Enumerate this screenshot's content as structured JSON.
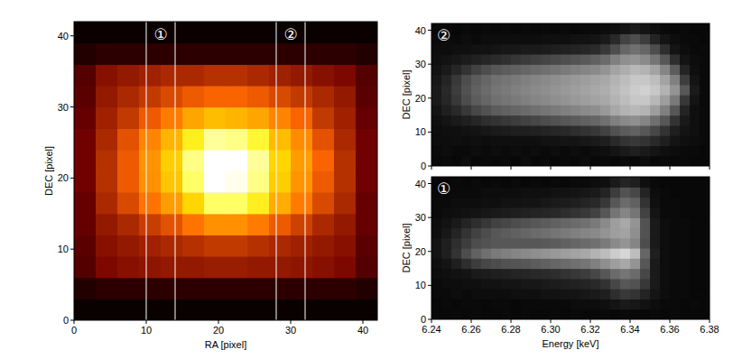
{
  "chart_data": [
    {
      "type": "heatmap",
      "color": "hot",
      "xlabel": "RA [pixel]",
      "ylabel": "DEC [pixel]",
      "xlim": [
        0,
        42
      ],
      "ylim": [
        0,
        42
      ],
      "xticks": [
        0,
        10,
        20,
        30,
        40
      ],
      "yticks": [
        0,
        10,
        20,
        30,
        40
      ],
      "zlim": [
        0,
        100
      ],
      "annotations": [
        {
          "label": "①",
          "x": [
            10,
            14
          ]
        },
        {
          "label": "②",
          "x": [
            28,
            32
          ]
        }
      ],
      "cells": [
        [
          2,
          2,
          2,
          2,
          2,
          2,
          2,
          2,
          2,
          2,
          2,
          2,
          2,
          2
        ],
        [
          6,
          8,
          8,
          8,
          8,
          8,
          8,
          8,
          8,
          8,
          8,
          8,
          8,
          6
        ],
        [
          15,
          22,
          24,
          25,
          26,
          26,
          27,
          27,
          26,
          26,
          25,
          24,
          22,
          15
        ],
        [
          16,
          24,
          26,
          28,
          30,
          32,
          34,
          34,
          32,
          30,
          28,
          26,
          24,
          16
        ],
        [
          18,
          26,
          30,
          35,
          40,
          48,
          55,
          55,
          50,
          42,
          36,
          30,
          26,
          18
        ],
        [
          18,
          30,
          38,
          48,
          58,
          72,
          85,
          85,
          78,
          62,
          50,
          38,
          30,
          18
        ],
        [
          20,
          32,
          42,
          55,
          68,
          85,
          100,
          98,
          88,
          70,
          56,
          42,
          32,
          20
        ],
        [
          20,
          32,
          42,
          56,
          70,
          88,
          100,
          100,
          90,
          72,
          58,
          44,
          32,
          20
        ],
        [
          20,
          30,
          40,
          52,
          64,
          78,
          90,
          88,
          80,
          66,
          54,
          40,
          30,
          20
        ],
        [
          18,
          28,
          34,
          42,
          50,
          60,
          66,
          64,
          60,
          52,
          44,
          34,
          28,
          18
        ],
        [
          16,
          26,
          30,
          34,
          38,
          42,
          44,
          44,
          42,
          38,
          34,
          30,
          26,
          16
        ],
        [
          15,
          24,
          26,
          28,
          30,
          30,
          32,
          32,
          30,
          28,
          26,
          24,
          22,
          15
        ],
        [
          6,
          8,
          8,
          8,
          8,
          8,
          8,
          8,
          8,
          8,
          8,
          8,
          8,
          6
        ],
        [
          2,
          2,
          2,
          2,
          2,
          2,
          2,
          2,
          2,
          2,
          2,
          2,
          2,
          2
        ]
      ]
    },
    {
      "type": "heatmap",
      "color": "gray",
      "title": "②",
      "ylabel": "DEC [pixel]",
      "tick_labels": "y",
      "xlim": [
        6.24,
        6.38
      ],
      "ylim": [
        0,
        42
      ],
      "xticks": [
        6.24,
        6.26,
        6.28,
        6.3,
        6.32,
        6.34,
        6.36,
        6.38
      ],
      "yticks": [
        0,
        10,
        20,
        30,
        40
      ],
      "zlim": [
        0,
        100
      ],
      "cells": [
        [
          3,
          4,
          3,
          5,
          3,
          4,
          3,
          4,
          3,
          5,
          3,
          4,
          3,
          4,
          3,
          5,
          3,
          4,
          3,
          4,
          3,
          5,
          3,
          4,
          3,
          4,
          3,
          3
        ],
        [
          4,
          5,
          4,
          4,
          5,
          4,
          5,
          4,
          5,
          4,
          5,
          4,
          5,
          4,
          5,
          4,
          5,
          6,
          8,
          10,
          12,
          10,
          8,
          6,
          5,
          4,
          4,
          3
        ],
        [
          5,
          5,
          6,
          5,
          6,
          5,
          6,
          6,
          6,
          6,
          6,
          7,
          7,
          8,
          8,
          9,
          10,
          12,
          16,
          20,
          22,
          20,
          16,
          12,
          8,
          6,
          5,
          4
        ],
        [
          5,
          6,
          6,
          7,
          8,
          9,
          10,
          11,
          12,
          12,
          13,
          14,
          15,
          16,
          18,
          20,
          22,
          26,
          32,
          36,
          38,
          34,
          28,
          20,
          12,
          8,
          6,
          4
        ],
        [
          6,
          8,
          10,
          12,
          15,
          18,
          20,
          22,
          24,
          26,
          28,
          30,
          32,
          34,
          36,
          38,
          40,
          44,
          50,
          54,
          56,
          52,
          44,
          34,
          20,
          10,
          6,
          4
        ],
        [
          8,
          12,
          16,
          22,
          28,
          32,
          36,
          38,
          40,
          42,
          44,
          46,
          48,
          50,
          52,
          54,
          56,
          60,
          66,
          70,
          72,
          70,
          62,
          50,
          34,
          14,
          6,
          4
        ],
        [
          10,
          15,
          22,
          30,
          36,
          40,
          44,
          46,
          48,
          50,
          52,
          54,
          56,
          58,
          60,
          62,
          64,
          66,
          70,
          74,
          78,
          78,
          72,
          62,
          48,
          22,
          8,
          4
        ],
        [
          10,
          16,
          24,
          32,
          38,
          42,
          46,
          48,
          50,
          52,
          54,
          56,
          58,
          60,
          62,
          64,
          66,
          68,
          72,
          76,
          80,
          82,
          78,
          70,
          58,
          34,
          10,
          4
        ],
        [
          9,
          14,
          22,
          30,
          36,
          40,
          44,
          46,
          48,
          50,
          52,
          54,
          56,
          58,
          60,
          62,
          64,
          66,
          70,
          74,
          78,
          78,
          74,
          64,
          50,
          24,
          8,
          4
        ],
        [
          7,
          10,
          15,
          20,
          26,
          30,
          34,
          36,
          38,
          40,
          42,
          44,
          46,
          48,
          50,
          52,
          54,
          58,
          64,
          68,
          72,
          70,
          64,
          52,
          36,
          14,
          6,
          4
        ],
        [
          6,
          7,
          9,
          11,
          13,
          15,
          17,
          19,
          21,
          23,
          25,
          27,
          29,
          31,
          33,
          35,
          38,
          42,
          50,
          56,
          58,
          54,
          46,
          34,
          18,
          8,
          5,
          4
        ],
        [
          5,
          5,
          6,
          6,
          7,
          7,
          8,
          9,
          9,
          10,
          10,
          11,
          12,
          13,
          14,
          15,
          17,
          22,
          30,
          40,
          44,
          40,
          30,
          18,
          8,
          5,
          4,
          4
        ],
        [
          4,
          5,
          4,
          5,
          4,
          5,
          5,
          5,
          5,
          5,
          5,
          6,
          6,
          6,
          7,
          7,
          8,
          10,
          16,
          26,
          30,
          24,
          14,
          8,
          5,
          4,
          4,
          3
        ],
        [
          3,
          4,
          3,
          4,
          3,
          4,
          3,
          4,
          3,
          4,
          3,
          4,
          3,
          4,
          3,
          4,
          4,
          5,
          6,
          8,
          10,
          8,
          6,
          4,
          3,
          4,
          3,
          3
        ]
      ]
    },
    {
      "type": "heatmap",
      "color": "gray",
      "title": "①",
      "xlabel": "Energy [keV]",
      "ylabel": "DEC [pixel]",
      "xlim": [
        6.24,
        6.38
      ],
      "ylim": [
        0,
        42
      ],
      "xticks": [
        6.24,
        6.26,
        6.28,
        {
          "value": 6.3,
          "label": "6.30"
        },
        6.32,
        6.34,
        6.36,
        6.38
      ],
      "yticks": [
        0,
        10,
        20,
        30,
        40
      ],
      "zlim": [
        0,
        100
      ],
      "cells": [
        [
          3,
          3,
          4,
          3,
          4,
          3,
          3,
          4,
          3,
          4,
          3,
          3,
          4,
          3,
          4,
          3,
          3,
          4,
          3,
          4,
          3,
          3,
          4,
          3,
          4,
          3,
          3,
          3
        ],
        [
          3,
          4,
          3,
          4,
          4,
          3,
          4,
          4,
          3,
          4,
          4,
          4,
          4,
          4,
          5,
          5,
          5,
          6,
          8,
          10,
          9,
          7,
          5,
          4,
          4,
          3,
          4,
          3
        ],
        [
          4,
          4,
          5,
          4,
          5,
          5,
          5,
          5,
          6,
          6,
          6,
          7,
          7,
          8,
          8,
          9,
          10,
          12,
          18,
          22,
          20,
          14,
          8,
          5,
          4,
          4,
          3,
          3
        ],
        [
          4,
          5,
          5,
          6,
          6,
          7,
          7,
          8,
          8,
          9,
          9,
          10,
          11,
          12,
          13,
          14,
          16,
          20,
          28,
          34,
          32,
          22,
          10,
          5,
          4,
          4,
          3,
          3
        ],
        [
          5,
          6,
          7,
          8,
          10,
          11,
          12,
          13,
          14,
          15,
          16,
          17,
          18,
          20,
          22,
          24,
          28,
          34,
          42,
          46,
          42,
          28,
          10,
          5,
          4,
          4,
          3,
          3
        ],
        [
          6,
          8,
          12,
          18,
          24,
          28,
          30,
          32,
          33,
          34,
          36,
          38,
          40,
          42,
          44,
          46,
          50,
          56,
          62,
          66,
          58,
          34,
          10,
          5,
          4,
          4,
          3,
          3
        ],
        [
          8,
          12,
          20,
          30,
          38,
          44,
          48,
          50,
          52,
          54,
          56,
          58,
          60,
          62,
          64,
          66,
          70,
          74,
          80,
          84,
          74,
          40,
          12,
          5,
          4,
          4,
          3,
          3
        ],
        [
          8,
          12,
          18,
          24,
          30,
          32,
          34,
          34,
          34,
          34,
          34,
          35,
          36,
          38,
          40,
          42,
          44,
          48,
          54,
          58,
          52,
          30,
          10,
          5,
          4,
          4,
          3,
          3
        ],
        [
          6,
          9,
          14,
          20,
          26,
          30,
          34,
          36,
          38,
          40,
          42,
          44,
          46,
          48,
          50,
          52,
          54,
          58,
          62,
          64,
          56,
          32,
          10,
          5,
          4,
          4,
          3,
          3
        ],
        [
          5,
          7,
          10,
          14,
          18,
          22,
          26,
          28,
          30,
          32,
          34,
          36,
          38,
          40,
          42,
          44,
          48,
          54,
          62,
          66,
          58,
          32,
          10,
          5,
          4,
          4,
          3,
          3
        ],
        [
          4,
          5,
          6,
          7,
          8,
          9,
          10,
          11,
          12,
          13,
          14,
          15,
          16,
          18,
          20,
          22,
          26,
          34,
          46,
          52,
          46,
          26,
          8,
          4,
          4,
          3,
          3,
          3
        ],
        [
          4,
          4,
          5,
          5,
          5,
          6,
          6,
          7,
          7,
          8,
          8,
          9,
          10,
          11,
          12,
          14,
          16,
          22,
          34,
          42,
          38,
          20,
          6,
          4,
          4,
          3,
          3,
          3
        ],
        [
          3,
          4,
          4,
          4,
          4,
          5,
          5,
          5,
          5,
          6,
          6,
          6,
          7,
          7,
          8,
          9,
          10,
          14,
          24,
          32,
          28,
          14,
          5,
          4,
          3,
          3,
          3,
          3
        ],
        [
          3,
          3,
          4,
          3,
          4,
          3,
          4,
          3,
          4,
          3,
          4,
          3,
          4,
          3,
          4,
          4,
          5,
          6,
          10,
          14,
          12,
          6,
          4,
          3,
          3,
          3,
          3,
          3
        ]
      ]
    }
  ]
}
